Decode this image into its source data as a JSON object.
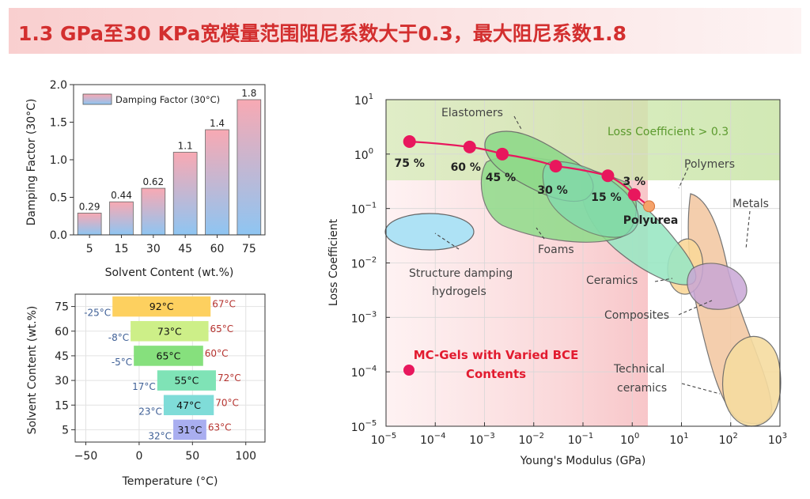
{
  "title": "1.3 GPa至30 KPa宽模量范围阻尼系数大于0.3，最大阻尼系数1.8",
  "colors": {
    "title_red": "#d32f2f",
    "bar_top": "#f8a9b3",
    "bar_bottom": "#8ec5f2",
    "highlight": "#e8175d",
    "polyurea": "#f5a26a"
  },
  "chart_data": [
    {
      "type": "bar",
      "categories": [
        "5",
        "15",
        "30",
        "45",
        "60",
        "75"
      ],
      "values": [
        0.29,
        0.44,
        0.62,
        1.1,
        1.4,
        1.8
      ],
      "value_labels": [
        "0.29",
        "0.44",
        "0.62",
        "1.1",
        "1.4",
        "1.8"
      ],
      "xlabel": "Solvent Content (wt.%)",
      "ylabel": "Damping Factor (30°C)",
      "ylim": [
        0,
        2.0
      ],
      "yticks": [
        "0.0",
        "0.5",
        "1.0",
        "1.5",
        "2.0"
      ],
      "series": [
        {
          "name": "Damping Factor (30°C)",
          "values": [
            0.29,
            0.44,
            0.62,
            1.1,
            1.4,
            1.8
          ]
        }
      ],
      "legend": "top-left"
    },
    {
      "type": "bar",
      "orientation": "horizontal-range",
      "categories": [
        "75",
        "60",
        "45",
        "30",
        "15",
        "5"
      ],
      "ranges": [
        {
          "category": "75",
          "low": -25,
          "high": 67,
          "low_label": "-25°C",
          "high_label": "67°C",
          "width_label": "92°C",
          "color": "#fdd05f"
        },
        {
          "category": "60",
          "low": -8,
          "high": 65,
          "low_label": "-8°C",
          "high_label": "65°C",
          "width_label": "73°C",
          "color": "#cdef88"
        },
        {
          "category": "45",
          "low": -5,
          "high": 60,
          "low_label": "-5°C",
          "high_label": "60°C",
          "width_label": "65°C",
          "color": "#86e07d"
        },
        {
          "category": "30",
          "low": 17,
          "high": 72,
          "low_label": "17°C",
          "high_label": "72°C",
          "width_label": "55°C",
          "color": "#7fe3b6"
        },
        {
          "category": "15",
          "low": 23,
          "high": 70,
          "low_label": "23°C",
          "high_label": "70°C",
          "width_label": "47°C",
          "color": "#7fdcd8"
        },
        {
          "category": "5",
          "low": 32,
          "high": 63,
          "low_label": "32°C",
          "high_label": "63°C",
          "width_label": "31°C",
          "color": "#a9aef0"
        }
      ],
      "xlabel": "Temperature (°C)",
      "ylabel": "Solvent Content (wt.%)",
      "xlim": [
        -60,
        118
      ],
      "xticks": [
        "−50",
        "0",
        "50",
        "100"
      ],
      "grid": true
    },
    {
      "type": "scatter",
      "xscale": "log",
      "yscale": "log",
      "xlabel": "Young's Modulus (GPa)",
      "ylabel": "Loss Coefficient",
      "xlim": [
        1e-05,
        1000
      ],
      "ylim": [
        1e-05,
        10
      ],
      "xticks": [
        "10",
        "10",
        "10",
        "10",
        "10",
        "10",
        "10",
        "10",
        "10"
      ],
      "xtick_exp": [
        "−5",
        "−4",
        "−3",
        "−2",
        "−1",
        "0",
        "1",
        "2",
        "3"
      ],
      "yticks": [
        "10",
        "10",
        "10",
        "10",
        "10",
        "10",
        "10"
      ],
      "ytick_exp": [
        "−5",
        "−4",
        "−3",
        "−2",
        "−1",
        "0",
        "1"
      ],
      "band_label": "Loss Coefficient > 0.3",
      "series": [
        {
          "name": "MC-Gels with Varied BCE Contents",
          "x": [
            3e-05,
            0.0005,
            0.0023,
            0.028,
            0.32,
            1.1
          ],
          "y": [
            1.7,
            1.35,
            1.0,
            0.6,
            0.4,
            0.18
          ],
          "labels": [
            "75 %",
            "60 %",
            "45 %",
            "30 %",
            "15 %",
            "3 %"
          ]
        },
        {
          "name": "Polyurea",
          "x": [
            2.2
          ],
          "y": [
            0.11
          ],
          "labels": [
            "Polyurea"
          ]
        }
      ],
      "regions": [
        "Elastomers",
        "Polymers",
        "Metals",
        "Foams",
        "Structure damping",
        "hydrogels",
        "Ceramics",
        "Composites",
        "Technical",
        "ceramics"
      ],
      "legend_label_lines": [
        "MC-Gels with Varied BCE",
        "Contents"
      ],
      "legend": "bottom-left"
    }
  ]
}
